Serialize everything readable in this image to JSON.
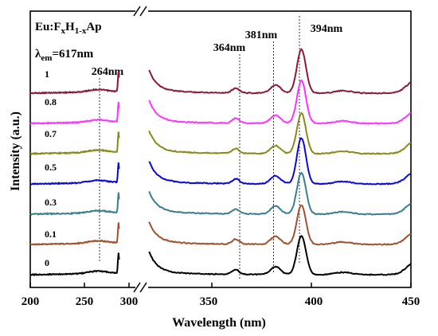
{
  "chart_data": {
    "type": "line",
    "xlabel": "Wavelength (nm)",
    "ylabel": "Intensity (a.u.)",
    "sample_label_prefix": "Eu:",
    "sample_label_F": "F",
    "sample_label_x": "x",
    "sample_label_H": "H",
    "sample_label_1mx": "1-x",
    "sample_label_suffix": "Ap",
    "lambda_symbol": "λ",
    "lambda_sub": "em",
    "lambda_value": "=617nm",
    "x_ticks": [
      "200",
      "250",
      "300",
      "350",
      "400",
      "450"
    ],
    "xlim": [
      200,
      450
    ],
    "x_break": "axis break between ~282 nm and ~318 nm",
    "annotations": [
      {
        "label": "264nm",
        "x": 264
      },
      {
        "label": "364nm",
        "x": 364
      },
      {
        "label": "381nm",
        "x": 381
      },
      {
        "label": "394nm",
        "x": 394
      }
    ],
    "series": [
      {
        "name": "1",
        "color": "#8b1a3a",
        "offset": 6,
        "intensity": 1.0
      },
      {
        "name": "0.8",
        "color": "#ff33ff",
        "offset": 5,
        "intensity": 0.98
      },
      {
        "name": "0.7",
        "color": "#8a8a1a",
        "offset": 4,
        "intensity": 0.92
      },
      {
        "name": "0.5",
        "color": "#0a0ad8",
        "offset": 3,
        "intensity": 1.05
      },
      {
        "name": "0.3",
        "color": "#3a7f8f",
        "offset": 2,
        "intensity": 0.95
      },
      {
        "name": "0.1",
        "color": "#a0522d",
        "offset": 1,
        "intensity": 0.9
      },
      {
        "name": "0",
        "color": "#000000",
        "offset": 0,
        "intensity": 0.88
      }
    ],
    "grid": false,
    "legend": "none (series labels at left)"
  }
}
